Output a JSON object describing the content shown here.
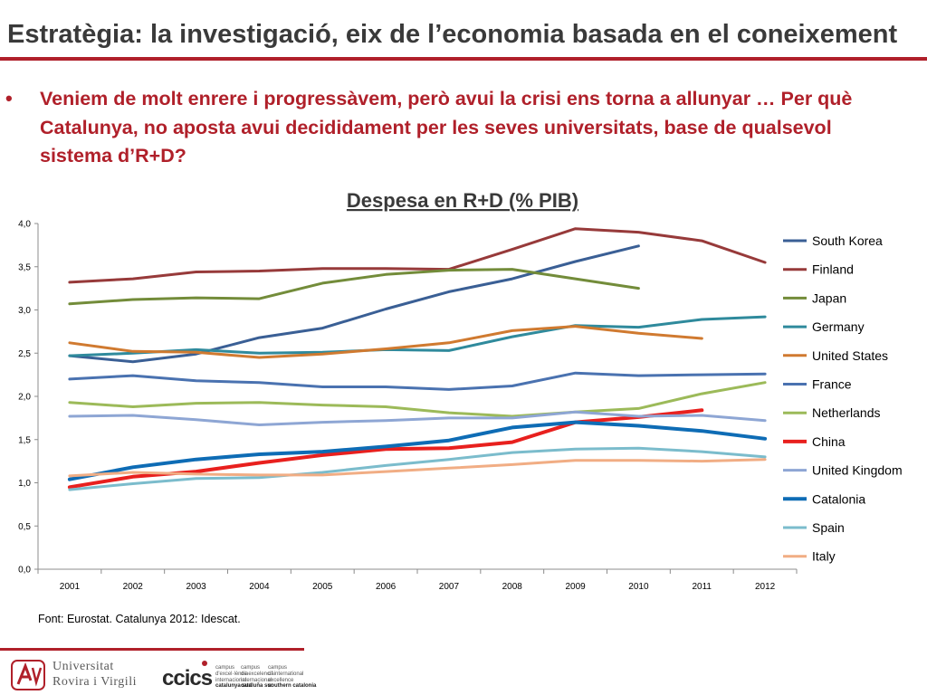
{
  "slide": {
    "title": "Estratègia: la investigació, eix de l’economia basada en el coneixement",
    "bullet_marker": "•",
    "bullet_text": "Veniem de molt enrere i progressàvem, però avui la crisi ens torna a allunyar … Per què Catalunya, no aposta avui decididament per les seves universitats, base de qualsevol sistema d’R+D?",
    "source": "Font: Eurostat. Catalunya 2012: Idescat."
  },
  "footer": {
    "urv_line1": "Universitat",
    "urv_line2": "Rovira i Virgili",
    "ccics_mark": "ccics",
    "campus_col1_line1": "campus",
    "campus_col1_line2": "d'excel·lència",
    "campus_col1_line3": "internacional",
    "campus_col1_bold": "catalunya sud",
    "campus_col2_line1": "campus",
    "campus_col2_line2": "de excelencia",
    "campus_col2_line3": "internacional",
    "campus_col2_bold": "cataluña sur",
    "campus_col3_line1": "campus",
    "campus_col3_line2": "of international",
    "campus_col3_line3": "excellence",
    "campus_col3_bold": "southern catalonia",
    "brand_color": "#b0202a"
  },
  "chart_data": {
    "type": "line",
    "title": "Despesa en R+D (% PIB)",
    "xlabel": "",
    "ylabel": "",
    "categories": [
      "2001",
      "2002",
      "2003",
      "2004",
      "2005",
      "2006",
      "2007",
      "2008",
      "2009",
      "2010",
      "2011",
      "2012"
    ],
    "ylim": [
      0,
      4
    ],
    "yticks": [
      0,
      0.5,
      1,
      1.5,
      2,
      2.5,
      3,
      3.5,
      4
    ],
    "ytick_labels": [
      "0,0",
      "0,5",
      "1,0",
      "1,5",
      "2,0",
      "2,5",
      "3,0",
      "3,5",
      "4,0"
    ],
    "grid": false,
    "legend_position": "right",
    "series": [
      {
        "name": "South Korea",
        "color": "#3a5f95",
        "width": 3,
        "values": [
          2.47,
          2.4,
          2.49,
          2.68,
          2.79,
          3.01,
          3.21,
          3.36,
          3.56,
          3.74,
          null,
          null
        ]
      },
      {
        "name": "Finland",
        "color": "#973a3a",
        "width": 3,
        "values": [
          3.32,
          3.36,
          3.44,
          3.45,
          3.48,
          3.48,
          3.47,
          3.7,
          3.94,
          3.9,
          3.8,
          3.55
        ]
      },
      {
        "name": "Japan",
        "color": "#738c3a",
        "width": 3,
        "values": [
          3.07,
          3.12,
          3.14,
          3.13,
          3.31,
          3.41,
          3.46,
          3.47,
          3.36,
          3.25,
          null,
          null
        ]
      },
      {
        "name": "Germany",
        "color": "#2f8a9c",
        "width": 3,
        "values": [
          2.47,
          2.5,
          2.54,
          2.5,
          2.51,
          2.54,
          2.53,
          2.69,
          2.82,
          2.8,
          2.89,
          2.92
        ]
      },
      {
        "name": "United States",
        "color": "#d07a30",
        "width": 3,
        "values": [
          2.62,
          2.52,
          2.51,
          2.45,
          2.49,
          2.55,
          2.62,
          2.76,
          2.81,
          2.73,
          2.67,
          null
        ]
      },
      {
        "name": "France",
        "color": "#4a72b0",
        "width": 3,
        "values": [
          2.2,
          2.24,
          2.18,
          2.16,
          2.11,
          2.11,
          2.08,
          2.12,
          2.27,
          2.24,
          2.25,
          2.26
        ]
      },
      {
        "name": "Netherlands",
        "color": "#9cba59",
        "width": 3,
        "values": [
          1.93,
          1.88,
          1.92,
          1.93,
          1.9,
          1.88,
          1.81,
          1.77,
          1.82,
          1.86,
          2.03,
          2.16
        ]
      },
      {
        "name": "China",
        "color": "#e8201e",
        "width": 4,
        "values": [
          0.95,
          1.07,
          1.13,
          1.23,
          1.32,
          1.39,
          1.4,
          1.47,
          1.7,
          1.76,
          1.84,
          null
        ]
      },
      {
        "name": "United Kingdom",
        "color": "#8ea6d4",
        "width": 3,
        "values": [
          1.77,
          1.78,
          1.73,
          1.67,
          1.7,
          1.72,
          1.75,
          1.75,
          1.82,
          1.77,
          1.78,
          1.72
        ]
      },
      {
        "name": "Catalonia",
        "color": "#0e6cb5",
        "width": 4,
        "values": [
          1.04,
          1.18,
          1.27,
          1.33,
          1.36,
          1.42,
          1.49,
          1.64,
          1.7,
          1.66,
          1.6,
          1.51
        ]
      },
      {
        "name": "Spain",
        "color": "#7bbccc",
        "width": 3,
        "values": [
          0.92,
          0.99,
          1.05,
          1.06,
          1.12,
          1.2,
          1.27,
          1.35,
          1.39,
          1.4,
          1.36,
          1.3
        ]
      },
      {
        "name": "Italy",
        "color": "#f1ad84",
        "width": 3,
        "values": [
          1.08,
          1.12,
          1.1,
          1.09,
          1.09,
          1.13,
          1.17,
          1.21,
          1.26,
          1.26,
          1.25,
          1.27
        ]
      }
    ]
  }
}
